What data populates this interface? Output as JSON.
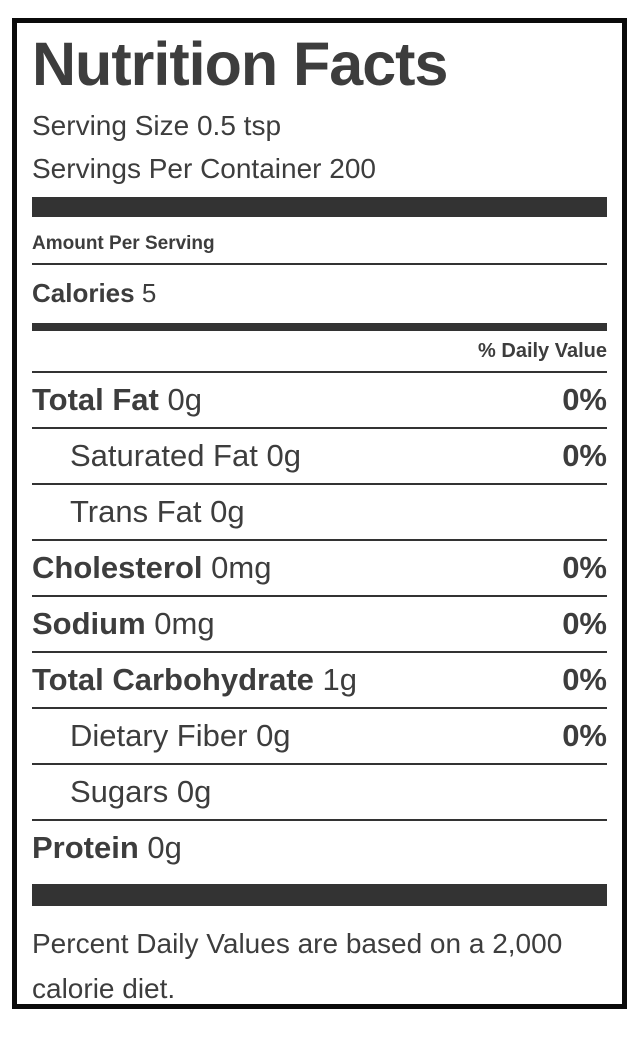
{
  "label": {
    "title": "Nutrition Facts",
    "serving_size": "Serving Size 0.5 tsp",
    "servings_per_container": "Servings Per Container 200",
    "amount_per_serving": "Amount Per Serving",
    "calories_label": "Calories",
    "calories_value": "5",
    "daily_value_header": "% Daily Value",
    "nutrients": [
      {
        "name": "Total Fat",
        "amount": "0g",
        "dv": "0%"
      },
      {
        "name": "Saturated Fat",
        "amount": "0g",
        "dv": "0%"
      },
      {
        "name": "Trans Fat",
        "amount": "0g",
        "dv": ""
      },
      {
        "name": "Cholesterol",
        "amount": "0mg",
        "dv": "0%"
      },
      {
        "name": "Sodium",
        "amount": "0mg",
        "dv": "0%"
      },
      {
        "name": "Total Carbohydrate",
        "amount": "1g",
        "dv": "0%"
      },
      {
        "name": "Dietary Fiber",
        "amount": "0g",
        "dv": "0%"
      },
      {
        "name": "Sugars",
        "amount": "0g",
        "dv": ""
      },
      {
        "name": "Protein",
        "amount": "0g",
        "dv": ""
      }
    ],
    "footnote": "Percent Daily Values are based on a 2,000 calorie diet.",
    "colors": {
      "text": "#3d3d3d",
      "bar": "#333333",
      "border": "#0b0b0b",
      "background": "#ffffff"
    }
  }
}
